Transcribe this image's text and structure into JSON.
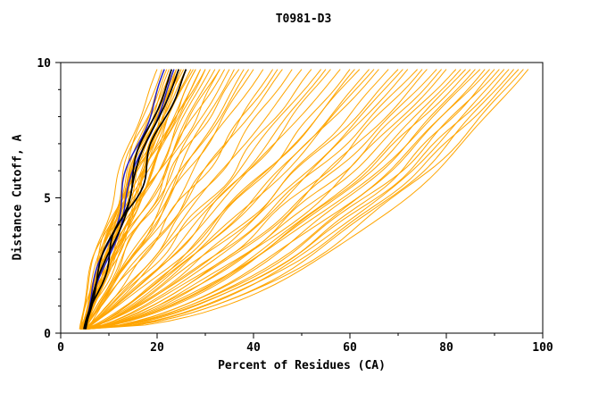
{
  "chart_data": {
    "type": "line",
    "title": "T0981-D3",
    "xlabel": "Percent of Residues (CA)",
    "ylabel": "Distance Cutoff, A",
    "xlim": [
      0,
      100
    ],
    "ylim": [
      0,
      10
    ],
    "xticks": [
      0,
      20,
      40,
      60,
      80,
      100
    ],
    "yticks": [
      0,
      5,
      10
    ],
    "xminor": [
      10,
      30,
      50,
      70,
      90
    ],
    "yminor": [
      1,
      2,
      3,
      4,
      6,
      7,
      8,
      9
    ],
    "grid": false,
    "legend": "none",
    "y_start": 0.15,
    "y_end": 9.75,
    "colors": {
      "o": "#FFA500",
      "b": "#2222CC",
      "k": "#000000"
    },
    "stroke_widths": {
      "o": 1.0,
      "b": 1.5,
      "k": 1.7
    },
    "draw_order": {
      "o": 0,
      "b": 1,
      "k": 2
    },
    "curve_format": [
      "group",
      "x_start",
      "x_top",
      "shape_exp",
      "wiggle_amp",
      "wiggle_freq",
      "wiggle_phase"
    ],
    "curves": [
      [
        "o",
        4.2,
        20,
        1.3,
        0.6,
        1.7,
        0.3
      ],
      [
        "o",
        4.8,
        21,
        1.22,
        0.9,
        1.2,
        2.1
      ],
      [
        "o",
        5.1,
        21.5,
        1.18,
        0.5,
        2.0,
        4.0
      ],
      [
        "o",
        3.9,
        22,
        1.28,
        1.1,
        1.5,
        1.0
      ],
      [
        "o",
        4.5,
        22.5,
        1.12,
        0.7,
        1.9,
        5.2
      ],
      [
        "o",
        5.3,
        23,
        1.25,
        0.8,
        1.1,
        2.7
      ],
      [
        "o",
        4.1,
        23,
        1.05,
        1.2,
        1.6,
        0.8
      ],
      [
        "o",
        4.7,
        23.5,
        1.2,
        0.6,
        2.2,
        3.5
      ],
      [
        "o",
        5.0,
        24,
        1.1,
        1.0,
        1.3,
        1.9
      ],
      [
        "o",
        4.3,
        24,
        1.32,
        0.7,
        1.8,
        4.6
      ],
      [
        "o",
        4.9,
        24.5,
        1.15,
        1.3,
        1.0,
        0.2
      ],
      [
        "o",
        5.4,
        25,
        1.08,
        0.8,
        2.1,
        2.4
      ],
      [
        "o",
        4.0,
        25,
        1.26,
        0.5,
        1.4,
        5.8
      ],
      [
        "o",
        4.6,
        25.5,
        1.18,
        1.1,
        1.7,
        1.5
      ],
      [
        "o",
        5.2,
        26,
        1.02,
        0.9,
        1.2,
        3.1
      ],
      [
        "o",
        4.4,
        26,
        1.22,
        0.6,
        2.3,
        0.6
      ],
      [
        "o",
        4.8,
        27,
        1.12,
        1.0,
        1.5,
        4.2
      ],
      [
        "o",
        5.5,
        27,
        1.25,
        0.7,
        1.1,
        2.0
      ],
      [
        "o",
        4.2,
        28,
        1.06,
        1.2,
        1.9,
        5.5
      ],
      [
        "o",
        4.9,
        28,
        1.18,
        0.8,
        1.6,
        1.2
      ],
      [
        "o",
        5.1,
        29,
        1.1,
        0.5,
        2.0,
        3.8
      ],
      [
        "o",
        4.5,
        30,
        1.22,
        1.1,
        1.3,
        0.9
      ],
      [
        "o",
        4.0,
        30,
        1.0,
        0.9,
        1.8,
        2.6
      ],
      [
        "o",
        5.3,
        31,
        1.15,
        0.6,
        1.5,
        4.9
      ],
      [
        "o",
        4.7,
        32,
        1.05,
        1.0,
        1.1,
        1.7
      ],
      [
        "o",
        5.0,
        33,
        0.98,
        0.8,
        2.2,
        3.3
      ],
      [
        "o",
        4.3,
        34,
        1.12,
        1.2,
        1.4,
        0.4
      ],
      [
        "o",
        4.8,
        35,
        1.02,
        0.7,
        1.7,
        5.1
      ],
      [
        "o",
        5.4,
        36,
        0.95,
        0.9,
        1.2,
        2.2
      ],
      [
        "o",
        4.1,
        37,
        1.08,
        1.1,
        2.0,
        4.4
      ],
      [
        "o",
        4.6,
        38,
        0.92,
        0.6,
        1.6,
        1.1
      ],
      [
        "o",
        5.2,
        39,
        1.02,
        1.0,
        1.3,
        3.6
      ],
      [
        "o",
        4.4,
        40,
        0.96,
        0.8,
        1.9,
        0.7
      ],
      [
        "o",
        4.9,
        42,
        1.0,
        1.2,
        1.1,
        2.9
      ],
      [
        "o",
        5.1,
        44,
        0.9,
        0.7,
        2.1,
        5.4
      ],
      [
        "o",
        4.2,
        46,
        0.95,
        0.9,
        1.5,
        1.4
      ],
      [
        "o",
        4.7,
        48,
        0.88,
        1.1,
        1.8,
        3.0
      ],
      [
        "o",
        5.3,
        50,
        0.92,
        0.6,
        1.2,
        4.7
      ],
      [
        "o",
        4.5,
        52,
        0.85,
        1.0,
        2.2,
        1.8
      ],
      [
        "o",
        5.0,
        54,
        0.9,
        0.8,
        1.4,
        0.1
      ],
      [
        "o",
        4.3,
        56,
        0.82,
        1.2,
        1.7,
        2.5
      ],
      [
        "o",
        4.8,
        58,
        0.86,
        0.7,
        1.0,
        5.0
      ],
      [
        "o",
        5.5,
        60,
        0.78,
        0.9,
        2.0,
        1.6
      ],
      [
        "o",
        4.1,
        62,
        0.82,
        1.1,
        1.5,
        3.4
      ],
      [
        "o",
        4.6,
        64,
        0.75,
        0.6,
        1.8,
        0.5
      ],
      [
        "o",
        5.2,
        66,
        0.8,
        1.0,
        1.2,
        2.8
      ],
      [
        "o",
        4.4,
        68,
        0.72,
        0.8,
        2.1,
        4.5
      ],
      [
        "o",
        4.9,
        70,
        0.76,
        1.2,
        1.6,
        1.3
      ],
      [
        "o",
        5.1,
        72,
        0.7,
        0.7,
        1.1,
        3.7
      ],
      [
        "o",
        4.2,
        74,
        0.73,
        0.9,
        1.9,
        0.8
      ],
      [
        "o",
        4.7,
        76,
        0.66,
        1.1,
        1.4,
        2.3
      ],
      [
        "o",
        5.3,
        78,
        0.7,
        0.6,
        2.2,
        5.6
      ],
      [
        "o",
        4.5,
        80,
        0.63,
        1.0,
        1.3,
        1.9
      ],
      [
        "o",
        5.0,
        82,
        0.67,
        0.8,
        1.7,
        3.9
      ],
      [
        "o",
        4.3,
        84,
        0.6,
        1.2,
        1.2,
        0.3
      ],
      [
        "o",
        4.8,
        85,
        0.64,
        0.7,
        2.0,
        2.7
      ],
      [
        "o",
        5.4,
        86,
        0.58,
        0.9,
        1.5,
        4.8
      ],
      [
        "o",
        4.0,
        87,
        0.62,
        1.1,
        1.0,
        1.5
      ],
      [
        "o",
        4.6,
        88,
        0.55,
        0.6,
        1.8,
        3.2
      ],
      [
        "o",
        5.2,
        89,
        0.6,
        1.0,
        1.3,
        0.6
      ],
      [
        "o",
        4.4,
        90,
        0.53,
        0.8,
        2.1,
        2.4
      ],
      [
        "o",
        4.9,
        91,
        0.57,
        1.2,
        1.6,
        4.3
      ],
      [
        "o",
        5.1,
        92,
        0.52,
        0.7,
        1.1,
        1.0
      ],
      [
        "o",
        4.2,
        93,
        0.55,
        0.9,
        1.9,
        3.5
      ],
      [
        "o",
        4.7,
        94,
        0.5,
        1.1,
        1.4,
        5.7
      ],
      [
        "o",
        5.3,
        95,
        0.54,
        0.6,
        2.2,
        2.0
      ],
      [
        "o",
        4.5,
        96,
        0.5,
        1.0,
        1.5,
        4.1
      ],
      [
        "o",
        5.0,
        97,
        0.48,
        0.8,
        1.2,
        1.2
      ],
      [
        "o",
        4.3,
        33,
        1.18,
        0.9,
        1.7,
        2.6
      ],
      [
        "o",
        4.8,
        27.5,
        1.3,
        0.7,
        1.3,
        5.3
      ],
      [
        "o",
        5.2,
        24.5,
        1.2,
        1.1,
        1.8,
        0.9
      ],
      [
        "o",
        4.6,
        29,
        1.08,
        0.8,
        1.1,
        3.0
      ],
      [
        "o",
        4.1,
        45,
        0.93,
        1.0,
        2.0,
        1.7
      ],
      [
        "o",
        4.9,
        55,
        0.84,
        0.7,
        1.6,
        4.0
      ],
      [
        "o",
        5.4,
        65,
        0.77,
        0.9,
        1.2,
        0.4
      ],
      [
        "o",
        4.4,
        75,
        0.68,
        1.1,
        1.9,
        2.2
      ],
      [
        "o",
        4.7,
        83,
        0.62,
        0.8,
        1.4,
        5.9
      ],
      [
        "o",
        5.1,
        79,
        0.66,
        1.0,
        2.1,
        1.1
      ],
      [
        "o",
        4.2,
        71,
        0.71,
        0.6,
        1.5,
        3.8
      ],
      [
        "o",
        4.8,
        61,
        0.79,
        1.2,
        1.0,
        0.2
      ],
      [
        "b",
        4.9,
        21.5,
        1.14,
        1.0,
        1.6,
        1.3
      ],
      [
        "b",
        5.1,
        23.5,
        1.1,
        0.9,
        1.3,
        3.2
      ],
      [
        "k",
        5.0,
        23,
        1.12,
        1.1,
        1.5,
        0.7
      ],
      [
        "k",
        5.2,
        24.5,
        1.16,
        0.9,
        1.2,
        2.9
      ],
      [
        "k",
        4.8,
        26,
        1.08,
        1.2,
        1.8,
        4.4
      ]
    ]
  }
}
